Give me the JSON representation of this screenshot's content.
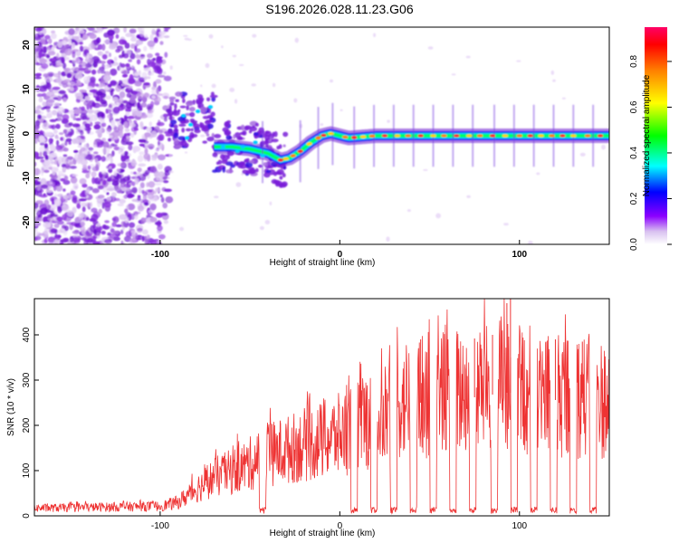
{
  "title": "S196.2026.028.11.23.G06",
  "chart_data": [
    {
      "type": "heatmap",
      "title": "S196.2026.028.11.23.G06",
      "xlabel": "Height of straight line (km)",
      "ylabel": "Frequency (Hz)",
      "xlim": [
        -170,
        150
      ],
      "ylim": [
        -25,
        24
      ],
      "xticks": [
        -100,
        0,
        100
      ],
      "yticks": [
        -20,
        -10,
        0,
        10,
        20
      ],
      "colorbar": {
        "label": "Normalized spectral amplitude",
        "range": [
          0,
          0.95
        ],
        "ticks": [
          "0.0",
          "0.2",
          "0.4",
          "0.6",
          "0.8"
        ],
        "tick_values": [
          0.0,
          0.2,
          0.4,
          0.6,
          0.8
        ]
      },
      "ridge": {
        "x": [
          -70,
          -60,
          -50,
          -40,
          -33,
          -28,
          -22,
          -16,
          -10,
          -5,
          0,
          5,
          20,
          50,
          100,
          150
        ],
        "y": [
          -3,
          -3,
          -3.5,
          -4.5,
          -6,
          -5.5,
          -4,
          -2,
          -0.5,
          0,
          -0.5,
          -1,
          -0.5,
          -0.5,
          -0.5,
          -0.5
        ]
      }
    },
    {
      "type": "line",
      "xlabel": "Height of straight line (km)",
      "ylabel": "SNR (10 * v/v)",
      "xlim": [
        -170,
        150
      ],
      "ylim": [
        0,
        480
      ],
      "xticks": [
        -100,
        0,
        100
      ],
      "yticks": [
        0,
        100,
        200,
        300,
        400
      ],
      "series": [
        {
          "name": "SNR",
          "color": "#ee3333",
          "envelope_x": [
            -170,
            -100,
            -90,
            -80,
            -70,
            -60,
            -50,
            -40,
            -30,
            -20,
            -10,
            0,
            10,
            20,
            30,
            40,
            60,
            80,
            90,
            95,
            100,
            120,
            140,
            150
          ],
          "envelope_y": [
            20,
            25,
            35,
            70,
            100,
            115,
            135,
            160,
            170,
            185,
            195,
            210,
            240,
            260,
            290,
            310,
            320,
            330,
            340,
            340,
            330,
            320,
            310,
            300
          ],
          "dropout_x": [
            -43,
            8,
            19,
            30,
            41,
            52,
            63,
            74,
            86,
            97,
            108,
            119,
            130,
            141
          ],
          "peak_x": [
            95,
            93,
            85,
            45,
            60,
            75,
            120,
            135
          ],
          "peak_y": [
            480,
            470,
            400,
            390,
            385,
            392,
            390,
            385
          ]
        }
      ]
    }
  ]
}
